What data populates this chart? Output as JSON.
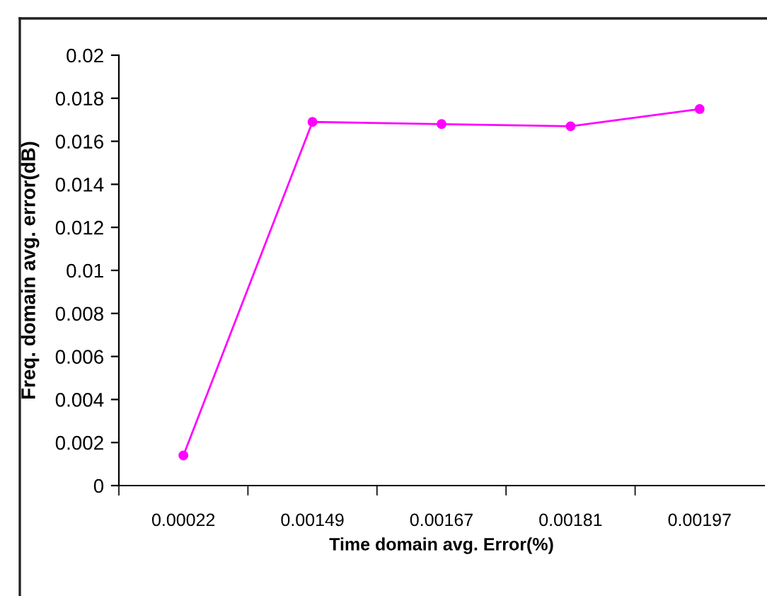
{
  "chart_data": {
    "type": "line",
    "xlabel": "Time domain avg. Error(%)",
    "ylabel": "Freq. domain avg. error(dB)",
    "categories": [
      "0.00022",
      "0.00149",
      "0.00167",
      "0.00181",
      "0.00197"
    ],
    "series": [
      {
        "color": "#ff00ff",
        "values": [
          0.0014,
          0.0169,
          0.0168,
          0.0167,
          0.0175
        ]
      }
    ],
    "ylim": [
      0,
      0.02
    ],
    "yticks": [
      0,
      {
        "value": 0.002,
        "label": "0.002"
      },
      {
        "value": 0.004,
        "label": "0.004"
      },
      {
        "value": 0.006,
        "label": "0.006"
      },
      {
        "value": 0.008,
        "label": "0.008"
      },
      {
        "value": 0.01,
        "label": "0.01"
      },
      {
        "value": 0.012,
        "label": "0.012"
      },
      {
        "value": 0.014,
        "label": "0.014"
      },
      {
        "value": 0.016,
        "label": "0.016"
      },
      {
        "value": 0.018,
        "label": "0.018"
      },
      {
        "value": 0.02,
        "label": "0.02"
      }
    ],
    "grid": false,
    "legend": false,
    "marker": "circle",
    "line_style": "solid"
  }
}
